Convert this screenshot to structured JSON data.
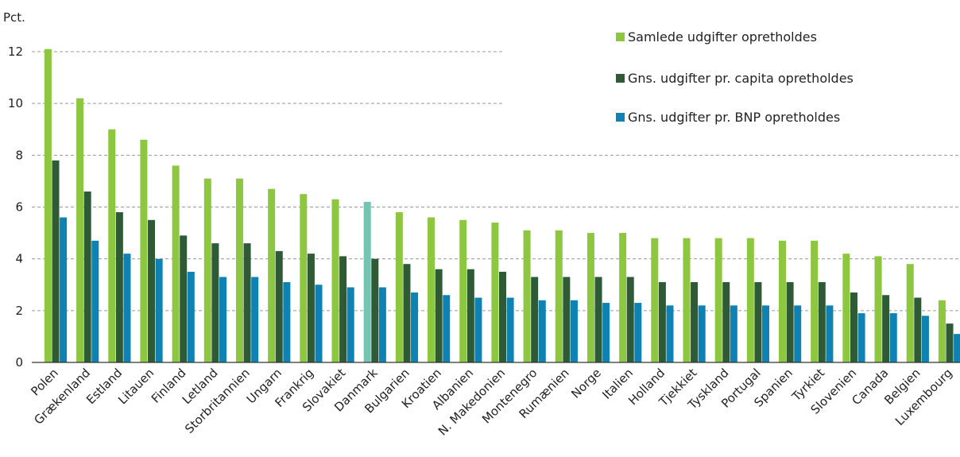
{
  "chart_data": {
    "type": "bar",
    "unit_label": "Pct.",
    "ylim": [
      0,
      12
    ],
    "yticks": [
      0,
      2,
      4,
      6,
      8,
      10,
      12
    ],
    "grid": true,
    "legend_position": "top-right",
    "categories": [
      "Polen",
      "Grækenland",
      "Estland",
      "Litauen",
      "Finland",
      "Letland",
      "Storbritannien",
      "Ungarn",
      "Frankrig",
      "Slovakiet",
      "Danmark",
      "Bulgarien",
      "Kroatien",
      "Albanien",
      "N. Makedonien",
      "Montenegro",
      "Rumænien",
      "Norge",
      "Italien",
      "Holland",
      "Tjekkiet",
      "Tyskland",
      "Portugal",
      "Spanien",
      "Tyrkiet",
      "Slovenien",
      "Canada",
      "Belgien",
      "Luxembourg"
    ],
    "series": [
      {
        "name": "Samlede udgifter opretholdes",
        "color": "#8dc63f",
        "values": [
          12.1,
          10.2,
          9.0,
          8.6,
          7.6,
          7.1,
          7.1,
          6.7,
          6.5,
          6.3,
          6.2,
          5.8,
          5.6,
          5.5,
          5.4,
          5.1,
          5.1,
          5.0,
          5.0,
          4.8,
          4.8,
          4.8,
          4.8,
          4.7,
          4.7,
          4.2,
          4.1,
          3.8,
          2.4
        ]
      },
      {
        "name": "Gns. udgifter pr. capita opretholdes",
        "color": "#2e5a35",
        "values": [
          7.8,
          6.6,
          5.8,
          5.5,
          4.9,
          4.6,
          4.6,
          4.3,
          4.2,
          4.1,
          4.0,
          3.8,
          3.6,
          3.6,
          3.5,
          3.3,
          3.3,
          3.3,
          3.3,
          3.1,
          3.1,
          3.1,
          3.1,
          3.1,
          3.1,
          2.7,
          2.6,
          2.5,
          1.5
        ]
      },
      {
        "name": "Gns. udgifter pr. BNP opretholdes",
        "color": "#0f82b4",
        "values": [
          5.6,
          4.7,
          4.2,
          4.0,
          3.5,
          3.3,
          3.3,
          3.1,
          3.0,
          2.9,
          2.9,
          2.7,
          2.6,
          2.5,
          2.5,
          2.4,
          2.4,
          2.3,
          2.3,
          2.2,
          2.2,
          2.2,
          2.2,
          2.2,
          2.2,
          1.9,
          1.9,
          1.8,
          1.1
        ]
      }
    ],
    "highlight": {
      "category": "Danmark",
      "series_index": 0,
      "color": "#74c4b2"
    }
  }
}
